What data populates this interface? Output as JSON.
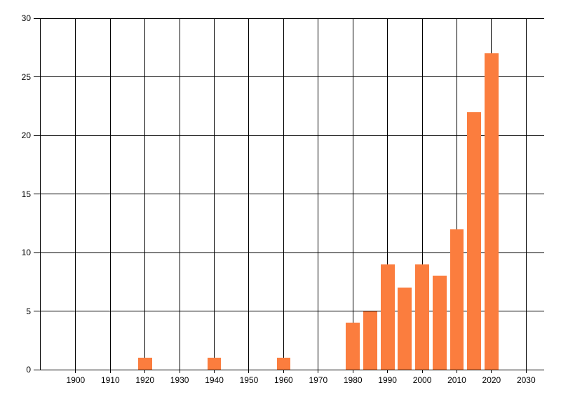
{
  "chart_data": {
    "type": "bar",
    "title": "",
    "xlabel": "",
    "ylabel": "",
    "x": [
      1920,
      1940,
      1960,
      1980,
      1985,
      1990,
      1995,
      2000,
      2005,
      2010,
      2015,
      2020
    ],
    "values": [
      1,
      1,
      1,
      4,
      5,
      9,
      7,
      9,
      8,
      12,
      22,
      27
    ],
    "xlim": [
      1889.7,
      2035.2
    ],
    "ylim": [
      0,
      30
    ],
    "x_ticks": [
      1900,
      1910,
      1920,
      1930,
      1940,
      1950,
      1960,
      1970,
      1980,
      1990,
      2000,
      2010,
      2020,
      2030
    ],
    "y_ticks": [
      0,
      5,
      10,
      15,
      20,
      25,
      30
    ],
    "bar_width_years": 4,
    "grid": true,
    "legend": "none",
    "colors": {
      "bar": "#fb7d3e",
      "gridline": "#000000",
      "axis": "#000000",
      "tick_label": "#000000",
      "background": "#ffffff"
    }
  }
}
